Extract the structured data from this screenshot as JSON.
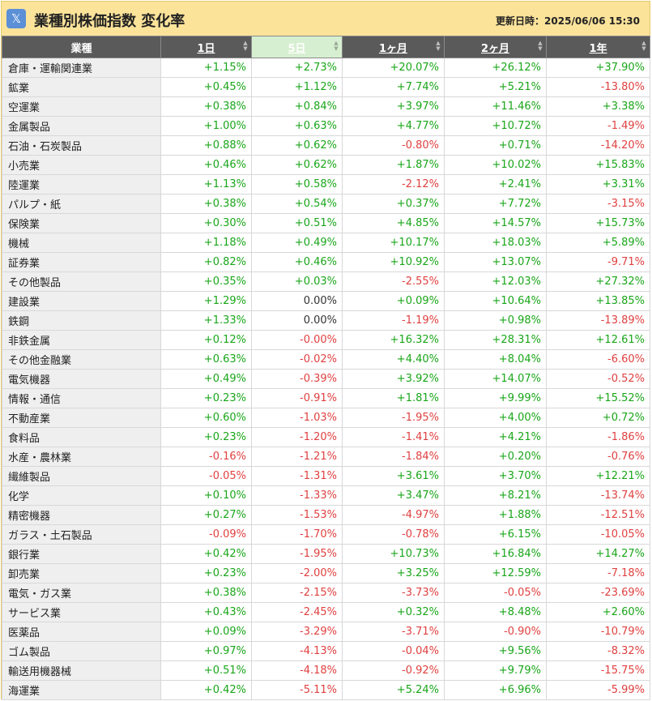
{
  "header": {
    "x_icon": "x-logo-icon",
    "title": "業種別株価指数 変化率",
    "updated": "更新日時：2025/06/06 15:30"
  },
  "columns": [
    "業種",
    "1日",
    "5日",
    "1ヶ月",
    "2ヶ月",
    "1年"
  ],
  "rows": [
    [
      "倉庫・運輸関連業",
      "+1.15%",
      "+2.73%",
      "+20.07%",
      "+26.12%",
      "+37.90%"
    ],
    [
      "鉱業",
      "+0.45%",
      "+1.12%",
      "+7.74%",
      "+5.21%",
      "-13.80%"
    ],
    [
      "空運業",
      "+0.38%",
      "+0.84%",
      "+3.97%",
      "+11.46%",
      "+3.38%"
    ],
    [
      "金属製品",
      "+1.00%",
      "+0.63%",
      "+4.77%",
      "+10.72%",
      "-1.49%"
    ],
    [
      "石油・石炭製品",
      "+0.88%",
      "+0.62%",
      "-0.80%",
      "+0.71%",
      "-14.20%"
    ],
    [
      "小売業",
      "+0.46%",
      "+0.62%",
      "+1.87%",
      "+10.02%",
      "+15.83%"
    ],
    [
      "陸運業",
      "+1.13%",
      "+0.58%",
      "-2.12%",
      "+2.41%",
      "+3.31%"
    ],
    [
      "パルプ・紙",
      "+0.38%",
      "+0.54%",
      "+0.37%",
      "+7.72%",
      "-3.15%"
    ],
    [
      "保険業",
      "+0.30%",
      "+0.51%",
      "+4.85%",
      "+14.57%",
      "+15.73%"
    ],
    [
      "機械",
      "+1.18%",
      "+0.49%",
      "+10.17%",
      "+18.03%",
      "+5.89%"
    ],
    [
      "証券業",
      "+0.82%",
      "+0.46%",
      "+10.92%",
      "+13.07%",
      "-9.71%"
    ],
    [
      "その他製品",
      "+0.35%",
      "+0.03%",
      "-2.55%",
      "+12.03%",
      "+27.32%"
    ],
    [
      "建設業",
      "+1.29%",
      "0.00%",
      "+0.09%",
      "+10.64%",
      "+13.85%"
    ],
    [
      "鉄鋼",
      "+1.33%",
      "0.00%",
      "-1.19%",
      "+0.98%",
      "-13.89%"
    ],
    [
      "非鉄金属",
      "+0.12%",
      "-0.00%",
      "+16.32%",
      "+28.31%",
      "+12.61%"
    ],
    [
      "その他金融業",
      "+0.63%",
      "-0.02%",
      "+4.40%",
      "+8.04%",
      "-6.60%"
    ],
    [
      "電気機器",
      "+0.49%",
      "-0.39%",
      "+3.92%",
      "+14.07%",
      "-0.52%"
    ],
    [
      "情報・通信",
      "+0.23%",
      "-0.91%",
      "+1.81%",
      "+9.99%",
      "+15.52%"
    ],
    [
      "不動産業",
      "+0.60%",
      "-1.03%",
      "-1.95%",
      "+4.00%",
      "+0.72%"
    ],
    [
      "食料品",
      "+0.23%",
      "-1.20%",
      "-1.41%",
      "+4.21%",
      "-1.86%"
    ],
    [
      "水産・農林業",
      "-0.16%",
      "-1.21%",
      "-1.84%",
      "+0.20%",
      "-0.76%"
    ],
    [
      "繊維製品",
      "-0.05%",
      "-1.31%",
      "+3.61%",
      "+3.70%",
      "+12.21%"
    ],
    [
      "化学",
      "+0.10%",
      "-1.33%",
      "+3.47%",
      "+8.21%",
      "-13.74%"
    ],
    [
      "精密機器",
      "+0.27%",
      "-1.53%",
      "-4.97%",
      "+1.88%",
      "-12.51%"
    ],
    [
      "ガラス・土石製品",
      "-0.09%",
      "-1.70%",
      "-0.78%",
      "+6.15%",
      "-10.05%"
    ],
    [
      "銀行業",
      "+0.42%",
      "-1.95%",
      "+10.73%",
      "+16.84%",
      "+14.27%"
    ],
    [
      "卸売業",
      "+0.23%",
      "-2.00%",
      "+3.25%",
      "+12.59%",
      "-7.18%"
    ],
    [
      "電気・ガス業",
      "+0.38%",
      "-2.15%",
      "-3.73%",
      "-0.05%",
      "-23.69%"
    ],
    [
      "サービス業",
      "+0.43%",
      "-2.45%",
      "+0.32%",
      "+8.48%",
      "+2.60%"
    ],
    [
      "医薬品",
      "+0.09%",
      "-3.29%",
      "-3.71%",
      "-0.90%",
      "-10.79%"
    ],
    [
      "ゴム製品",
      "+0.97%",
      "-4.13%",
      "-0.04%",
      "+9.56%",
      "-8.32%"
    ],
    [
      "輸送用機器械",
      "+0.51%",
      "-4.18%",
      "-0.92%",
      "+9.79%",
      "-15.75%"
    ],
    [
      "海運業",
      "+0.42%",
      "-5.11%",
      "+5.24%",
      "+6.96%",
      "-5.99%"
    ]
  ],
  "active_sort_column": "5日",
  "colors": {
    "positive": "#19a619",
    "negative": "#e04040",
    "neutral": "#333333",
    "header_bg": "#5a5a5a",
    "active_header_bg": "#d6efd0",
    "frame_bg": "#fbe39a"
  }
}
